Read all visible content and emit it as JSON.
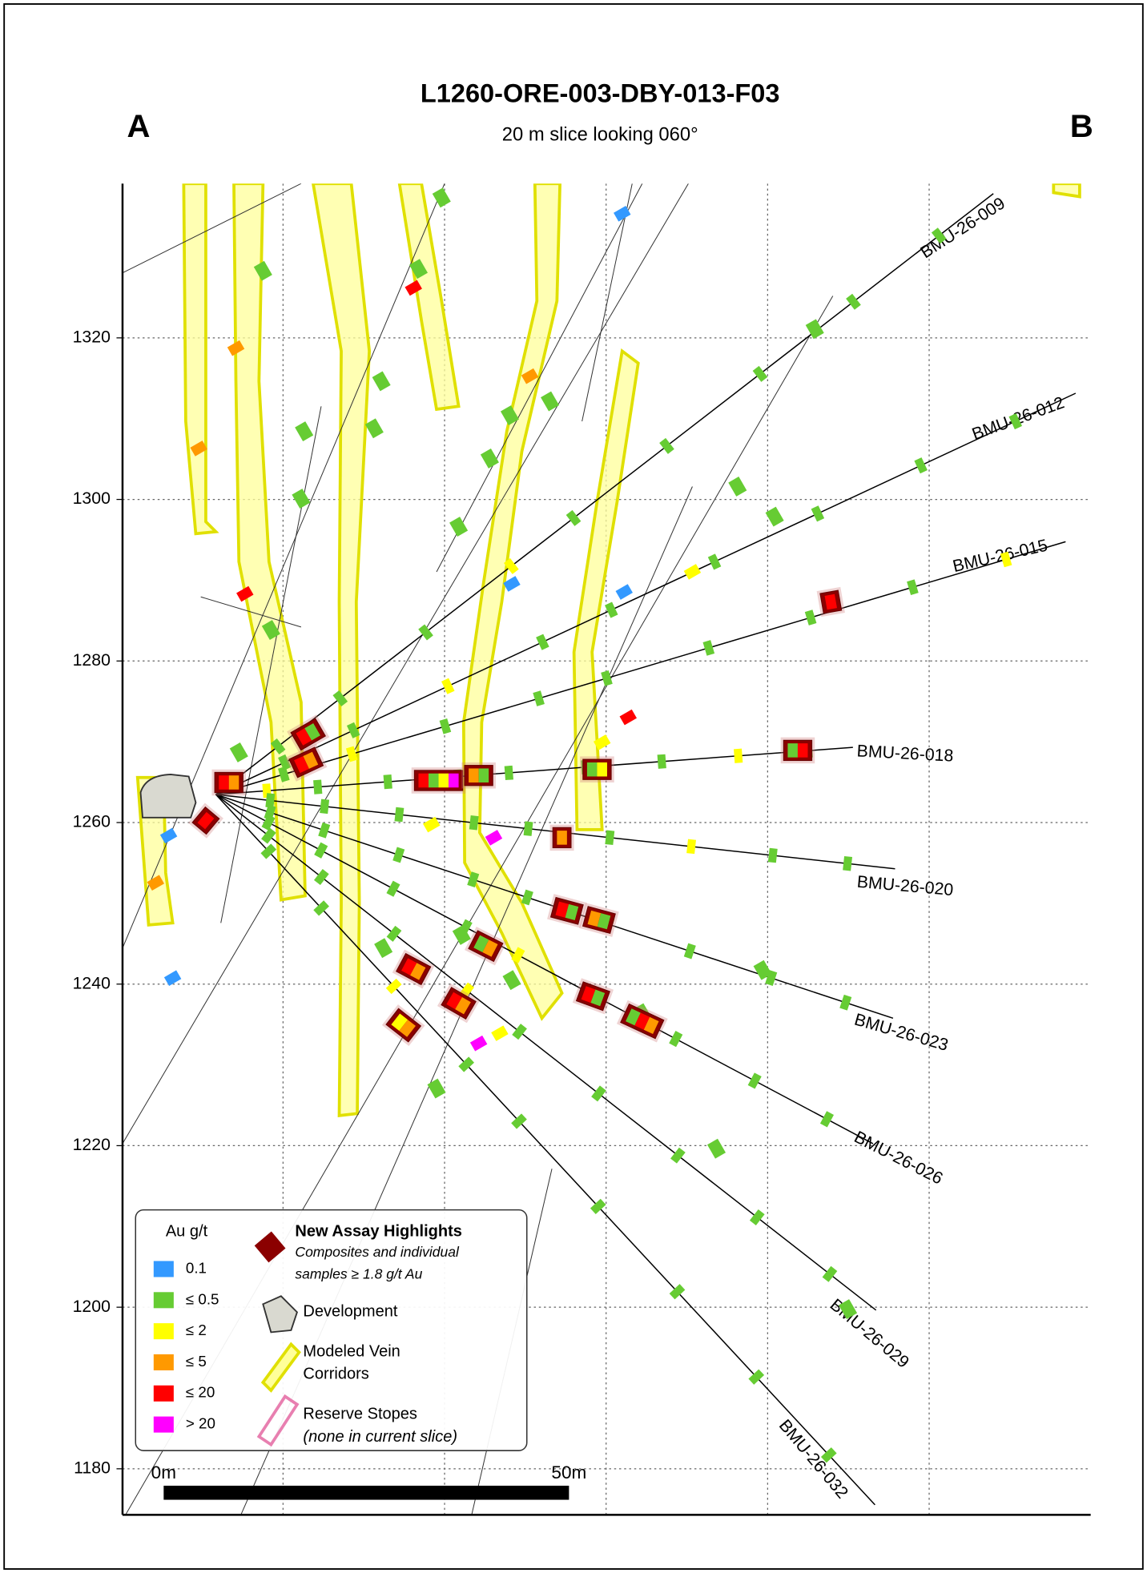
{
  "header": {
    "title": "L1260-ORE-003-DBY-013-F03",
    "subtitle": "20 m slice looking 060°",
    "left_corner": "A",
    "right_corner": "B"
  },
  "axis": {
    "ylim": [
      1174.3,
      1339.1
    ],
    "ticks": [
      1180,
      1200,
      1220,
      1240,
      1260,
      1280,
      1300,
      1320
    ],
    "grid": true
  },
  "scale_bar": {
    "start_label": "0m",
    "end_label": "50m"
  },
  "drill_holes": [
    "BMU-26-009",
    "BMU-26-012",
    "BMU-26-015",
    "BMU-26-018",
    "BMU-26-020",
    "BMU-26-023",
    "BMU-26-026",
    "BMU-26-029",
    "BMU-26-032"
  ],
  "legend": {
    "title": "Au g/t",
    "grades": [
      {
        "label": "0.1",
        "color": "#3399ff"
      },
      {
        "label": "≤ 0.5",
        "color": "#66cc33"
      },
      {
        "label": "≤ 2",
        "color": "#ffff00"
      },
      {
        "label": "≤ 5",
        "color": "#ff9900"
      },
      {
        "label": "≤ 20",
        "color": "#ff0000"
      },
      {
        "label": "> 20",
        "color": "#ff00ff"
      }
    ],
    "highlights": {
      "title": "New Assay Highlights",
      "line1": "Composites and individual",
      "line2": "samples ≥ 1.8 g/t Au"
    },
    "development": "Development",
    "veins": {
      "line1": "Modeled Vein",
      "line2": "Corridors"
    },
    "stopes": {
      "line1": "Reserve Stopes",
      "line2": "(none in current slice)"
    }
  }
}
